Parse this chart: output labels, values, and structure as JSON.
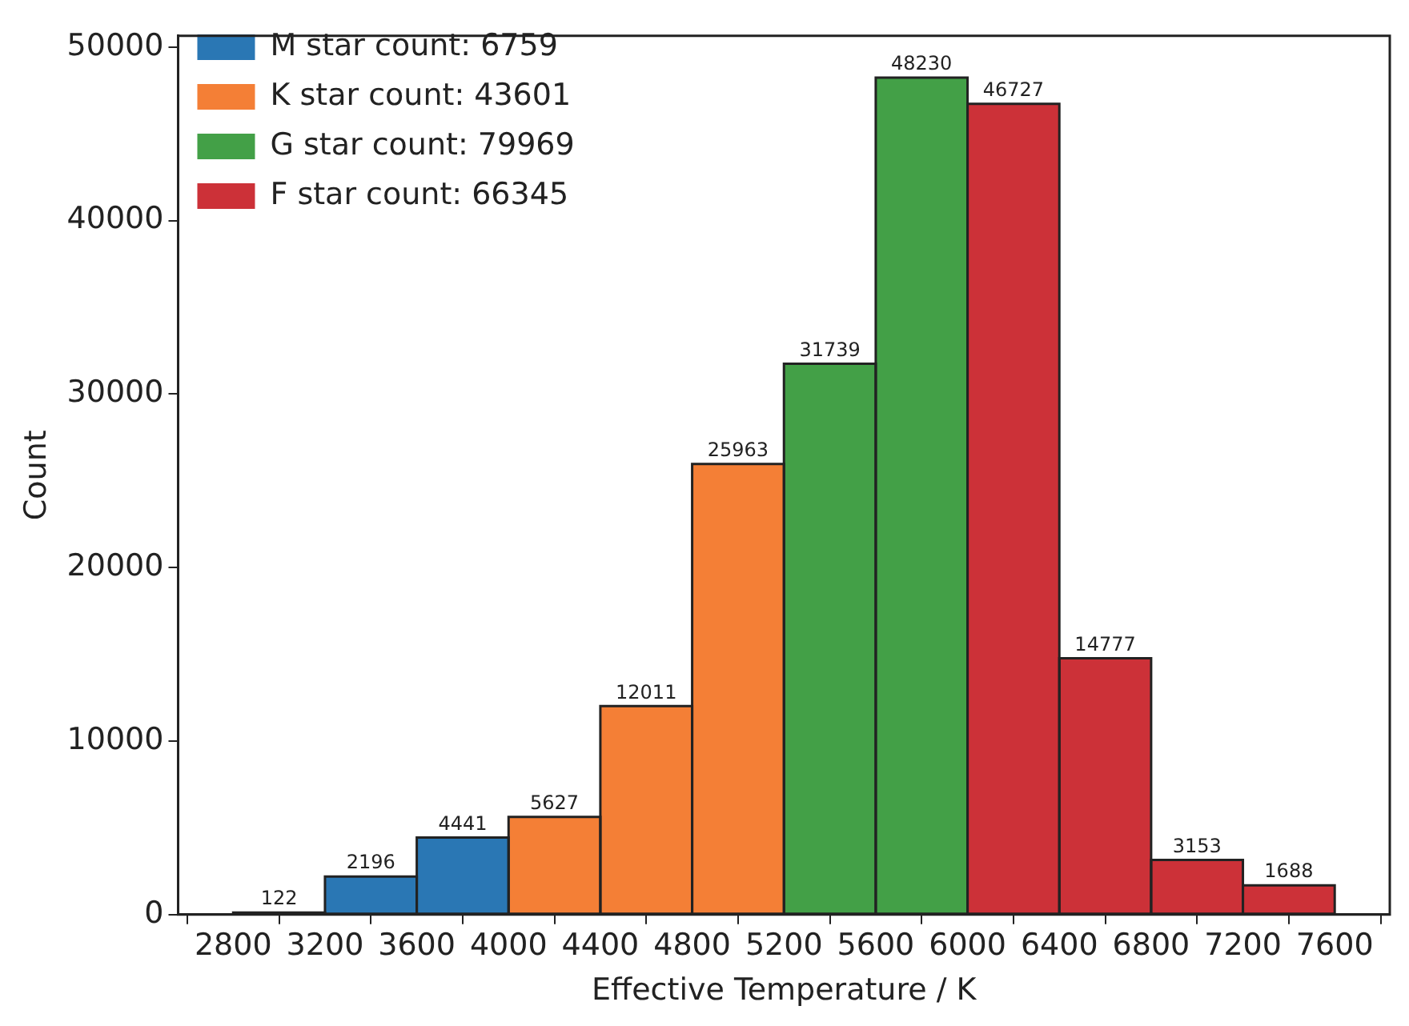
{
  "chart_data": {
    "type": "histogram",
    "xlabel": "Effective Temperature / K",
    "ylabel": "Count",
    "bins": [
      2800,
      3200,
      3600,
      4000,
      4400,
      4800,
      5200,
      5600,
      6000,
      6400,
      6800,
      7200,
      7600
    ],
    "series": [
      {
        "name": "M star count: 6759",
        "color": "#2a77b4",
        "values": [
          122,
          2196,
          4441,
          null,
          null,
          null,
          null,
          null,
          null,
          null,
          null,
          null
        ]
      },
      {
        "name": "K star count: 43601",
        "color": "#f47f36",
        "values": [
          null,
          null,
          null,
          5627,
          12011,
          25963,
          null,
          null,
          null,
          null,
          null,
          null
        ]
      },
      {
        "name": "G star count: 79969",
        "color": "#43a047",
        "values": [
          null,
          null,
          null,
          null,
          null,
          null,
          31739,
          48230,
          null,
          null,
          null,
          null
        ]
      },
      {
        "name": "F star count: 66345",
        "color": "#cc3138",
        "values": [
          null,
          null,
          null,
          null,
          null,
          null,
          null,
          null,
          46727,
          14777,
          3153,
          1688
        ]
      }
    ],
    "xlim": [
      2560,
      7840
    ],
    "xticks": [
      2800,
      3200,
      3600,
      4000,
      4400,
      4800,
      5200,
      5600,
      6000,
      6400,
      6800,
      7200,
      7600
    ],
    "ylim": [
      0,
      50640
    ],
    "yticks": [
      0,
      10000,
      20000,
      30000,
      40000,
      50000
    ],
    "data_labels": true,
    "legend": "top left",
    "grid": false
  }
}
